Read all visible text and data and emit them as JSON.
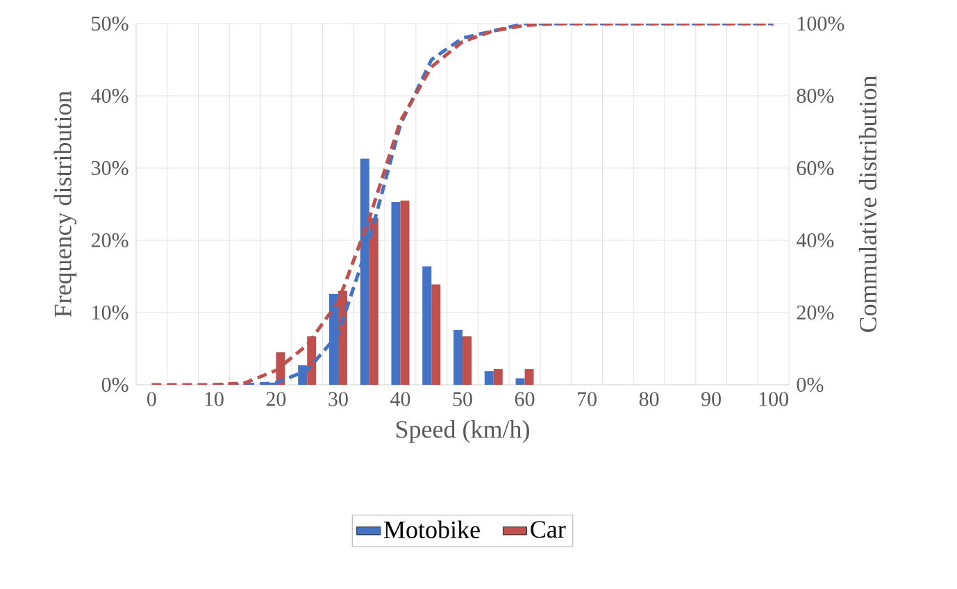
{
  "chart_data": {
    "type": "bar",
    "xlabel": "Speed (km/h)",
    "ylabel": "Frequency distribution",
    "y2label": "Commulative distribution",
    "categories": [
      "0",
      null,
      "10",
      null,
      "20",
      null,
      "30",
      null,
      "40",
      null,
      "50",
      null,
      "60",
      null,
      "70",
      null,
      "80",
      null,
      "90",
      null,
      "100"
    ],
    "series": [
      {
        "name": "Motobike",
        "color": "#4472c4",
        "values": [
          0,
          0,
          0,
          0,
          0.3,
          2.7,
          12.6,
          31.3,
          25.3,
          16.4,
          7.6,
          1.9,
          0.9,
          0,
          0,
          0,
          0,
          0,
          0,
          0,
          0
        ]
      },
      {
        "name": "Car",
        "color": "#c0504d",
        "values": [
          0,
          0,
          0,
          0,
          4.5,
          6.7,
          13,
          23.1,
          25.5,
          13.9,
          6.7,
          2.2,
          2.2,
          0,
          0,
          0,
          0,
          0,
          0,
          0,
          0
        ]
      },
      {
        "type": "line",
        "axis": "y2",
        "color": "#4472c4",
        "line_style": "dashed",
        "values": [
          null,
          null,
          0,
          0,
          0.5,
          4,
          14,
          40,
          72,
          90,
          96,
          98,
          100,
          100,
          100,
          100,
          100,
          100,
          100,
          100,
          100
        ]
      },
      {
        "type": "line",
        "axis": "y2",
        "color": "#c0504d",
        "line_style": "dashed",
        "values": [
          0,
          0,
          0,
          0.5,
          4,
          11,
          23,
          46,
          73,
          88,
          95,
          98,
          99.5,
          100,
          100,
          100,
          100,
          100,
          100,
          100,
          100
        ]
      }
    ],
    "ylim": [
      0,
      50
    ],
    "yticks": [
      {
        "value": 0,
        "label": "0%"
      },
      {
        "value": 10,
        "label": "10%"
      },
      {
        "value": 20,
        "label": "20%"
      },
      {
        "value": 30,
        "label": "30%"
      },
      {
        "value": 40,
        "label": "40%"
      },
      {
        "value": 50,
        "label": "50%"
      }
    ],
    "y2lim": [
      0,
      100
    ],
    "y2ticks": [
      {
        "value": 0,
        "label": "0%"
      },
      {
        "value": 20,
        "label": "20%"
      },
      {
        "value": 40,
        "label": "40%"
      },
      {
        "value": 60,
        "label": "60%"
      },
      {
        "value": 80,
        "label": "80%"
      },
      {
        "value": 100,
        "label": "100%"
      }
    ],
    "grid": true,
    "legend": "bottom",
    "marker": "none"
  }
}
